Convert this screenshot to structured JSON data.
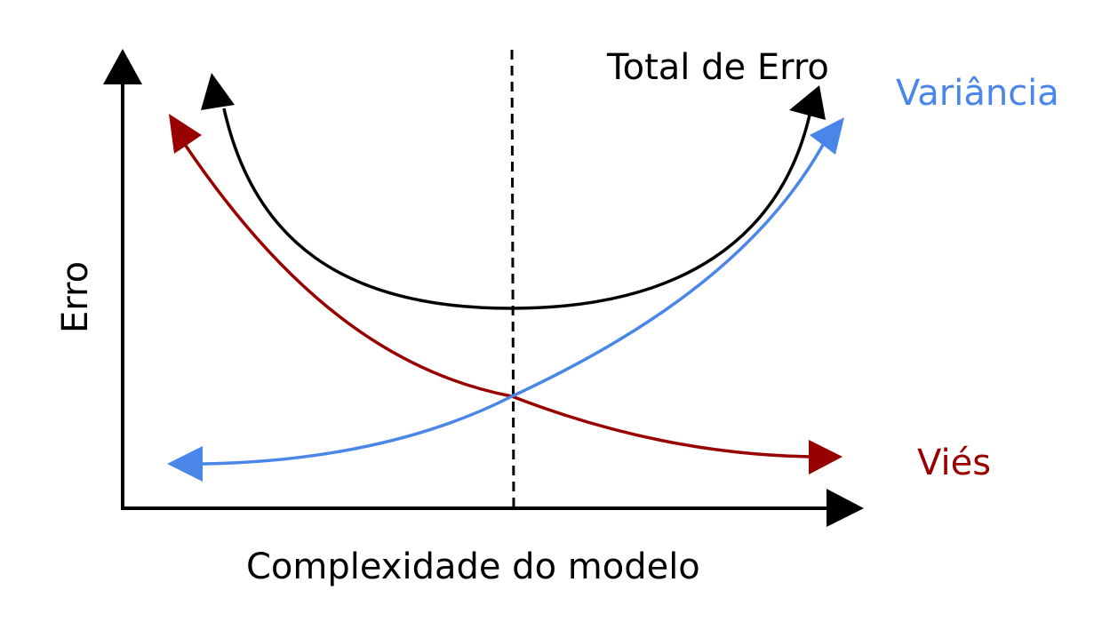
{
  "diagram": {
    "y_axis_label": "Erro",
    "x_axis_label": "Complexidade do modelo",
    "curves": {
      "total": {
        "label": "Total de Erro",
        "color": "#000000"
      },
      "variance": {
        "label": "Variância",
        "color": "#4a86e8"
      },
      "bias": {
        "label": "Viés",
        "color": "#990000"
      }
    },
    "optimum_marker": {
      "style": "dashed",
      "color": "#000000"
    }
  }
}
